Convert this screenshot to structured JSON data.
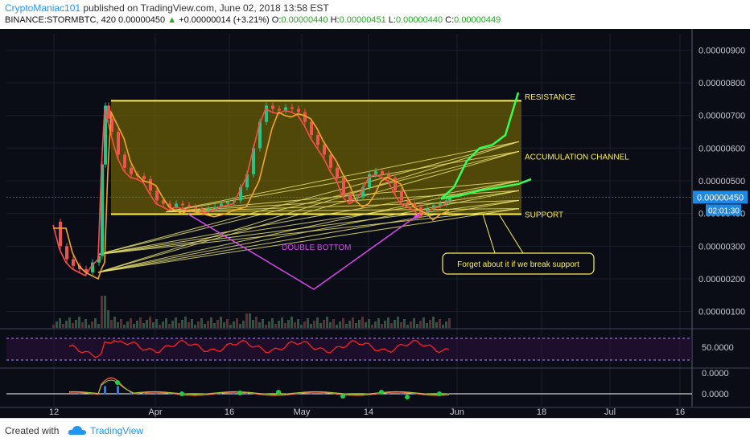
{
  "header": {
    "author": "CryptoManiac101",
    "published": "published on TradingView.com, June 02, 2018 13:58 EST",
    "symbol": "BINANCE:STORMBTC, 420",
    "last": "0.00000450",
    "arrow": "▲",
    "change": "+0.00000014 (+3.21%)",
    "o_label": "O:",
    "o": "0.00000440",
    "h_label": "H:",
    "h": "0.00000451",
    "l_label": "L:",
    "l": "0.00000440",
    "c_label": "C:",
    "c": "0.00000449"
  },
  "chart_data": {
    "type": "candlestick",
    "y_ticks": [
      "0.00000900",
      "0.00000800",
      "0.00000700",
      "0.00000600",
      "0.00000500",
      "0.00000400",
      "0.00000300",
      "0.00000200",
      "0.00000100"
    ],
    "y_tick_values": [
      900,
      800,
      700,
      600,
      500,
      400,
      300,
      200,
      100
    ],
    "ylim": [
      50,
      950
    ],
    "x_ticks": [
      "12",
      "Apr",
      "16",
      "May",
      "14",
      "Jun",
      "18",
      "Jul",
      "16"
    ],
    "price_badge": "0.00000450",
    "countdown": "02:01:30",
    "resistance": 745,
    "support": 398,
    "price_path": [
      [
        0,
        375
      ],
      [
        2,
        300
      ],
      [
        4,
        260
      ],
      [
        6,
        240
      ],
      [
        8,
        230
      ],
      [
        10,
        220
      ],
      [
        12,
        250
      ],
      [
        14,
        270
      ],
      [
        15,
        550
      ],
      [
        16,
        730
      ],
      [
        17,
        690
      ],
      [
        18,
        650
      ],
      [
        20,
        580
      ],
      [
        22,
        540
      ],
      [
        24,
        520
      ],
      [
        26,
        515
      ],
      [
        28,
        505
      ],
      [
        30,
        470
      ],
      [
        32,
        440
      ],
      [
        34,
        430
      ],
      [
        36,
        420
      ],
      [
        38,
        430
      ],
      [
        40,
        425
      ],
      [
        42,
        420
      ],
      [
        44,
        415
      ],
      [
        46,
        410
      ],
      [
        48,
        415
      ],
      [
        50,
        420
      ],
      [
        52,
        430
      ],
      [
        54,
        435
      ],
      [
        56,
        440
      ],
      [
        58,
        480
      ],
      [
        60,
        520
      ],
      [
        62,
        600
      ],
      [
        64,
        680
      ],
      [
        66,
        730
      ],
      [
        68,
        720
      ],
      [
        70,
        715
      ],
      [
        72,
        725
      ],
      [
        74,
        720
      ],
      [
        76,
        710
      ],
      [
        78,
        680
      ],
      [
        80,
        640
      ],
      [
        82,
        610
      ],
      [
        84,
        580
      ],
      [
        86,
        540
      ],
      [
        88,
        510
      ],
      [
        90,
        460
      ],
      [
        92,
        440
      ],
      [
        94,
        450
      ],
      [
        96,
        480
      ],
      [
        98,
        520
      ],
      [
        100,
        530
      ],
      [
        102,
        520
      ],
      [
        104,
        510
      ],
      [
        106,
        470
      ],
      [
        108,
        440
      ],
      [
        110,
        430
      ],
      [
        112,
        420
      ],
      [
        114,
        400
      ],
      [
        116,
        415
      ],
      [
        118,
        425
      ],
      [
        120,
        430
      ],
      [
        122,
        440
      ],
      [
        123,
        450
      ]
    ],
    "projection_steep": [
      [
        124,
        445
      ],
      [
        128,
        480
      ],
      [
        132,
        560
      ],
      [
        136,
        600
      ],
      [
        140,
        610
      ],
      [
        144,
        640
      ],
      [
        148,
        770
      ]
    ],
    "projection_flat": [
      [
        124,
        445
      ],
      [
        130,
        455
      ],
      [
        136,
        470
      ],
      [
        142,
        480
      ],
      [
        148,
        490
      ],
      [
        152,
        505
      ]
    ],
    "annotations": {
      "resistance": "RESISTANCE",
      "channel": "ACCUMULATION CHANNEL",
      "support": "SUPPORT",
      "double_bottom": "DOUBLE BOTTOM",
      "warning": "Forget about it if we break support"
    },
    "rsi": {
      "label": "50.0000",
      "upper": 70,
      "lower": 30
    },
    "macd": {
      "labels": [
        "0.0000",
        "0.0000"
      ]
    }
  },
  "footer": {
    "created": "Created with",
    "brand": "TradingView"
  }
}
